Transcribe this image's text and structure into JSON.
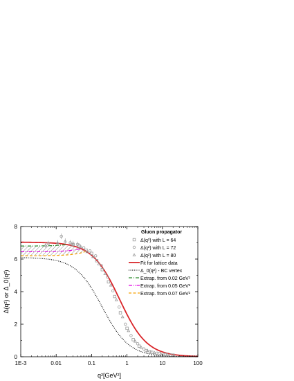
{
  "chart_data": {
    "type": "line",
    "xscale": "log",
    "xlim": [
      0.001,
      100
    ],
    "ylim": [
      0,
      8
    ],
    "xticks": [
      0.001,
      0.01,
      0.1,
      1,
      10,
      100
    ],
    "xtick_labels": [
      "1E-3",
      "0.01",
      "0.1",
      "1",
      "10",
      "100"
    ],
    "yticks": [
      0,
      2,
      4,
      6,
      8
    ],
    "ytick_labels": [
      "0",
      "2",
      "4",
      "6",
      "8"
    ],
    "xlabel": "q²[GeV²]",
    "ylabel": "Δ(q²) or Δ_0(q²)",
    "legend_title": "Gluon propagator",
    "legend_position": "top-right",
    "series": [
      {
        "name": "Δ(q²) with L = 64",
        "kind": "points",
        "marker": "square",
        "color": "#9a9a9a",
        "x": [
          0.03,
          0.045,
          0.07,
          0.1,
          0.14,
          0.2,
          0.3,
          0.45,
          0.65,
          1.0,
          1.5,
          2.2,
          3.5,
          5,
          8,
          12,
          20
        ],
        "y": [
          6.9,
          6.8,
          6.55,
          6.35,
          5.9,
          5.35,
          4.6,
          3.7,
          2.7,
          1.75,
          1.05,
          0.65,
          0.38,
          0.27,
          0.19,
          0.14,
          0.1
        ]
      },
      {
        "name": "Δ(q²) with L = 72",
        "kind": "points",
        "marker": "circle",
        "color": "#9a9a9a",
        "x": [
          0.006,
          0.014,
          0.025,
          0.04,
          0.06,
          0.09,
          0.13,
          0.19,
          0.28,
          0.4,
          0.6,
          0.9,
          1.3,
          2,
          3,
          4.5,
          7,
          11,
          17
        ],
        "y": [
          6.95,
          7.4,
          7.0,
          6.9,
          6.7,
          6.5,
          6.2,
          5.6,
          4.9,
          4.05,
          3.05,
          2.0,
          1.3,
          0.8,
          0.48,
          0.31,
          0.22,
          0.16,
          0.11
        ]
      },
      {
        "name": "Δ(q²) with L = 80",
        "kind": "points",
        "marker": "triangle",
        "color": "#9a9a9a",
        "x": [
          0.005,
          0.011,
          0.018,
          0.03,
          0.05,
          0.075,
          0.11,
          0.16,
          0.24,
          0.35,
          0.5,
          0.75,
          1.1,
          1.7,
          2.5,
          3.8,
          6,
          9,
          14,
          21
        ],
        "y": [
          6.85,
          7.0,
          7.1,
          6.95,
          6.75,
          6.45,
          6.15,
          5.7,
          5.1,
          4.4,
          3.5,
          2.45,
          1.6,
          0.95,
          0.58,
          0.37,
          0.25,
          0.18,
          0.13,
          0.09
        ]
      },
      {
        "name": "Fit for lattice data",
        "kind": "fit",
        "color": "#d9262a",
        "style": "solid",
        "plateau": 7.04,
        "scale": 0.62,
        "power": 1.12
      },
      {
        "name": "Δ_0(q²) - BC vertex",
        "kind": "bc",
        "color": "#000000",
        "style": "dotted",
        "plateau": 6.1,
        "scale": 0.2,
        "power": 1.15
      },
      {
        "name": "Extrap. from 0.02 GeV²",
        "kind": "extrap",
        "color": "#2a8a2a",
        "style": "dashdot",
        "from": 0.02,
        "y0": 6.8
      },
      {
        "name": "Extrap. from 0.05 GeV²",
        "kind": "extrap",
        "color": "#e000e0",
        "style": "dashdotdot",
        "from": 0.05,
        "y0": 6.45
      },
      {
        "name": "Extrap. from 0.07 GeV²",
        "kind": "extrap",
        "color": "#f5a000",
        "style": "dash",
        "from": 0.07,
        "y0": 6.2
      }
    ]
  }
}
